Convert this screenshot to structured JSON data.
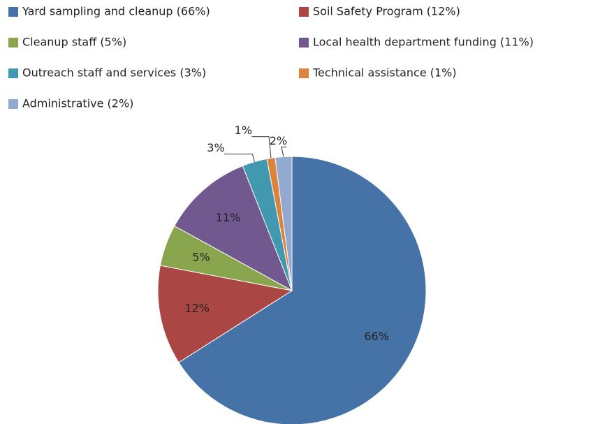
{
  "chart_data": {
    "type": "pie",
    "categories": [
      "Yard sampling and cleanup (66%)",
      "Soil Safety Program (12%)",
      "Cleanup staff (5%)",
      "Local health department funding (11%)",
      "Outreach staff and services (3%)",
      "Technical assistance (1%)",
      "Administrative (2%)"
    ],
    "values": [
      66,
      12,
      5,
      11,
      3,
      1,
      2
    ],
    "value_labels": [
      "66%",
      "12%",
      "5%",
      "11%",
      "3%",
      "1%",
      "2%"
    ],
    "colors": [
      "#4572a7",
      "#aa4643",
      "#89a54e",
      "#71588f",
      "#4198af",
      "#db843d",
      "#93a9cf"
    ]
  }
}
